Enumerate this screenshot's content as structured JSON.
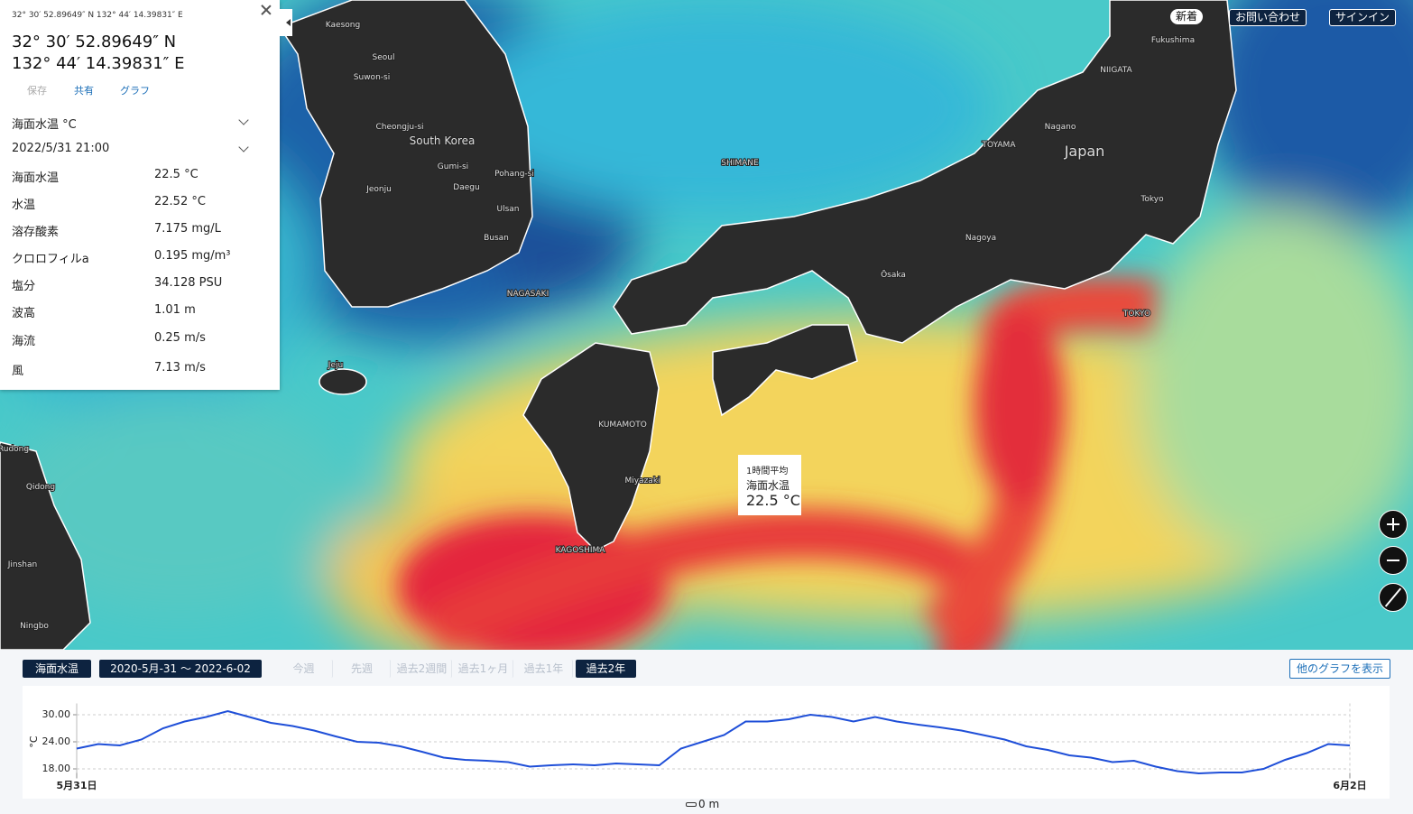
{
  "panel": {
    "header": "32° 30′ 52.89649″ N 132° 44′ 14.39831″ E",
    "lat": "32° 30′ 52.89649″ N",
    "lon": "132° 44′ 14.39831″ E",
    "actions": [
      "保存",
      "共有",
      "グラフ"
    ],
    "variable": "海面水温  °C",
    "datetime": "2022/5/31 21:00",
    "rows": [
      [
        "海面水温",
        "22.5 °C"
      ],
      [
        "水温",
        "22.52 °C"
      ],
      [
        "溶存酸素",
        "7.175 mg/L"
      ],
      [
        "クロロフィルa",
        "0.195 mg/m³"
      ],
      [
        "塩分",
        "34.128 PSU"
      ],
      [
        "波高",
        "1.01 m"
      ],
      [
        "海流",
        "0.25 m/s"
      ],
      [
        "風",
        "7.13 m/s"
      ]
    ]
  },
  "nav": [
    "新着",
    "お問い合わせ",
    "サインイン"
  ],
  "tooltip": {
    "caption": "1時間平均",
    "variable": "海面水温",
    "value": "22.5 °C"
  },
  "map_labels": [
    "Kaesong",
    "Seoul",
    "Suwon-si",
    "Cheongju-si",
    "South Korea",
    "Gumi-si",
    "Pohang-si",
    "Daegu",
    "Jeonju",
    "Ulsan",
    "Busan",
    "Jeju",
    "Japan",
    "Tokyo",
    "Nagoya",
    "Nagano",
    "Ōsaka",
    "Fukushima",
    "NIIGATA",
    "TOYAMA",
    "SHIMANE",
    "NAGASAKI",
    "KUMAMOTO",
    "Miyazaki",
    "KAGOSHIMA",
    "TOKYO",
    "Rudong",
    "Qidong",
    "Jinshan",
    "Ningbo"
  ],
  "toolbar": {
    "variable": "海面水温",
    "range": "2020-5月-31 ～ 2022-6-02",
    "periods": [
      "今週",
      "先週",
      "過去2週間",
      "過去1ヶ月",
      "過去1年",
      "過去2年"
    ],
    "more": "他のグラフを表示"
  },
  "depth": "0 m",
  "chart_data": {
    "type": "line",
    "y_label": "°C",
    "color": "#1f4fd8",
    "values": [
      22.5,
      23.5,
      23.2,
      24.5,
      27,
      28.5,
      29.5,
      30.8,
      29.5,
      28.2,
      27.5,
      26.5,
      25.2,
      24,
      23.8,
      23,
      21.8,
      20.5,
      20,
      19.8,
      19.5,
      18.5,
      18.8,
      19,
      18.8,
      19.2,
      19,
      18.8,
      22.5,
      24,
      25.5,
      28.5,
      28.5,
      29,
      30,
      29.5,
      28.5,
      29.5,
      28.5,
      27.8,
      27.2,
      26.5,
      25.5,
      24.5,
      23,
      22.2,
      21,
      20.5,
      19.5,
      19.8,
      18.5,
      17.5,
      17,
      17.2,
      17.2,
      18,
      20,
      21.5,
      23.5,
      23.2
    ],
    "xticks": [
      {
        "value": 0,
        "label": "5月31日"
      },
      {
        "value": 59,
        "label": "6月2日"
      }
    ],
    "ylim": [
      16.5,
      32.5
    ],
    "yticks": [
      {
        "value": 18,
        "label": "18.00"
      },
      {
        "value": 24,
        "label": "24.00"
      },
      {
        "value": 30,
        "label": "30.00"
      }
    ],
    "grid": true
  }
}
